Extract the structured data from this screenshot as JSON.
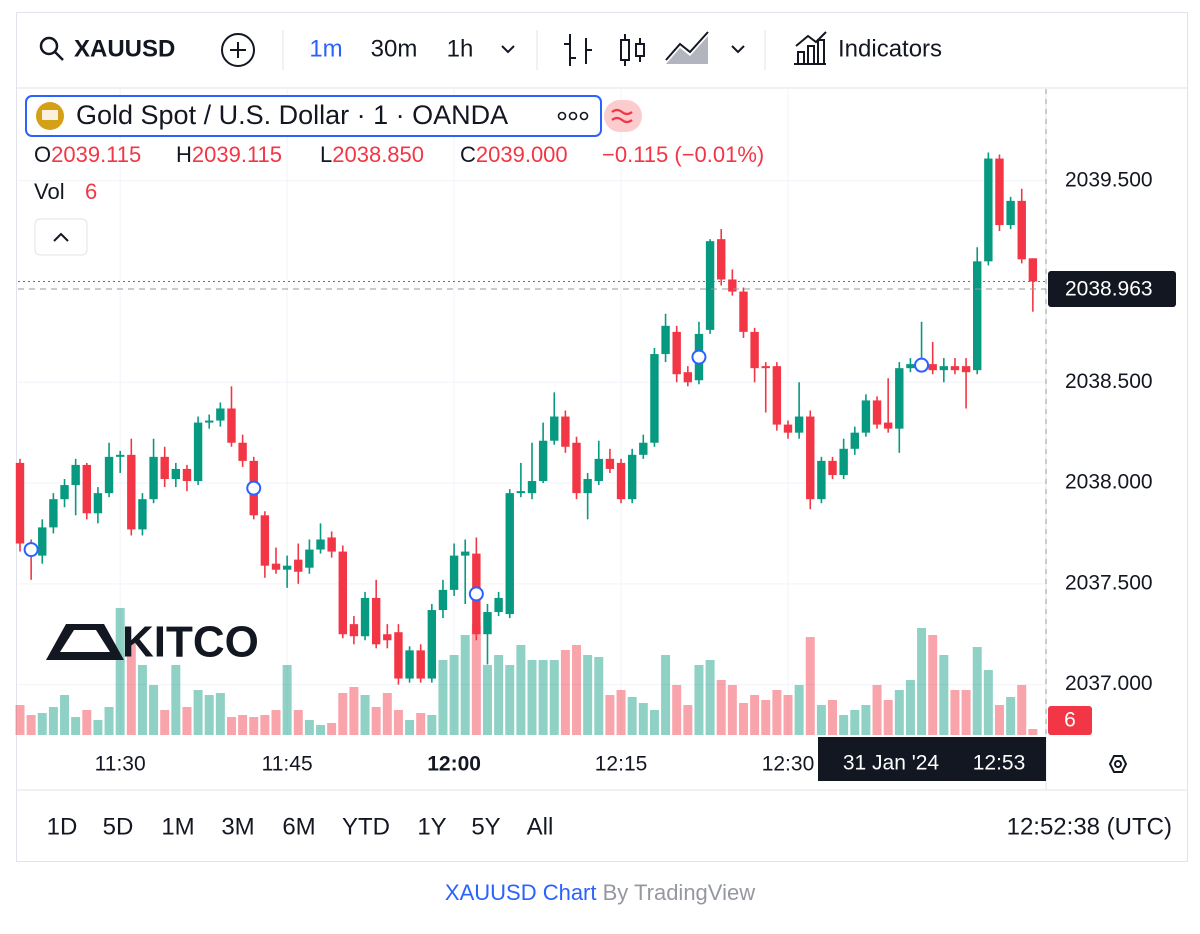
{
  "toolbar": {
    "symbol": "XAUUSD",
    "intervals": [
      "1m",
      "30m",
      "1h"
    ],
    "indicators": "Indicators"
  },
  "legend": {
    "title": "Gold Spot / U.S. Dollar · 1 · OANDA",
    "ohlc": [
      {
        "key": "O",
        "value": "2039.115"
      },
      {
        "key": "H",
        "value": "2039.115"
      },
      {
        "key": "L",
        "value": "2038.850"
      },
      {
        "key": "C",
        "value": "2039.000"
      }
    ],
    "change": "−0.115 (−0.01%)",
    "vol_label": "Vol"
  },
  "logo": "KITCO",
  "chart_data": {
    "type": "candlestick",
    "up_color": "#089981",
    "down_color": "#f23645",
    "grid": true,
    "xlim": [
      -0.18,
      92.18
    ],
    "xticks": [
      {
        "value": 9,
        "label": "11:30"
      },
      {
        "value": 24,
        "label": "11:45"
      },
      {
        "value": 39,
        "label": "12:00"
      },
      {
        "value": 54,
        "label": "12:15"
      },
      {
        "value": 69,
        "label": "12:30"
      }
    ],
    "ylim": [
      2036.75,
      2039.955
    ],
    "yticks": [
      {
        "value": 2037,
        "label": "2037.000"
      },
      {
        "value": 2037.5,
        "label": "2037.500"
      },
      {
        "value": 2038,
        "label": "2038.000"
      },
      {
        "value": 2038.5,
        "label": "2038.500"
      },
      {
        "value": 2039.5,
        "label": "2039.500"
      }
    ],
    "current_price": 2038.963,
    "open": [
      2038.1,
      2037.7,
      2037.64,
      2037.78,
      2037.92,
      2037.99,
      2038.09,
      2037.85,
      2037.95,
      2038.13,
      2038.14,
      2037.77,
      2037.92,
      2038.13,
      2038.02,
      2038.07,
      2038.01,
      2038.3,
      2038.31,
      2038.37,
      2038.2,
      2038.11,
      2037.84,
      2037.6,
      2037.57,
      2037.62,
      2037.58,
      2037.67,
      2037.73,
      2037.66,
      2037.3,
      2037.24,
      2037.43,
      2037.25,
      2037.26,
      2037.03,
      2037.17,
      2037.03,
      2037.37,
      2037.47,
      2037.64,
      2037.65,
      2037.25,
      2037.36,
      2037.35,
      2037.95,
      2037.95,
      2038.01,
      2038.21,
      2038.33,
      2038.2,
      2037.95,
      2038.01,
      2038.12,
      2038.1,
      2037.92,
      2038.14,
      2038.2,
      2038.64,
      2038.75,
      2038.55,
      2038.51,
      2038.76,
      2039.21,
      2039.01,
      2038.95,
      2038.75,
      2038.58,
      2038.58,
      2038.29,
      2038.25,
      2038.33,
      2037.92,
      2038.11,
      2038.04,
      2038.17,
      2038.25,
      2038.41,
      2038.3,
      2038.27,
      2038.57,
      2038.57,
      2038.59,
      2038.56,
      2038.58,
      2038.58,
      2038.56,
      2039.1,
      2039.61,
      2039.28,
      2039.4,
      2039.115
    ],
    "high": [
      2038.12,
      2037.72,
      2037.82,
      2037.95,
      2038.02,
      2038.12,
      2038.1,
      2037.98,
      2038.2,
      2038.16,
      2038.22,
      2037.95,
      2038.22,
      2038.18,
      2038.1,
      2038.09,
      2038.33,
      2038.34,
      2038.4,
      2038.48,
      2038.24,
      2038.13,
      2037.86,
      2037.68,
      2037.64,
      2037.7,
      2037.72,
      2037.8,
      2037.76,
      2037.69,
      2037.34,
      2037.46,
      2037.52,
      2037.3,
      2037.3,
      2037.19,
      2037.2,
      2037.4,
      2037.52,
      2037.7,
      2037.72,
      2037.73,
      2037.4,
      2037.46,
      2037.97,
      2038.1,
      2038.2,
      2038.3,
      2038.45,
      2038.36,
      2038.23,
      2038.05,
      2038.21,
      2038.17,
      2038.12,
      2038.17,
      2038.24,
      2038.67,
      2038.84,
      2038.78,
      2038.58,
      2038.8,
      2039.21,
      2039.26,
      2039.06,
      2038.97,
      2038.77,
      2038.6,
      2038.6,
      2038.31,
      2038.5,
      2038.36,
      2038.13,
      2038.13,
      2038.22,
      2038.28,
      2038.44,
      2038.43,
      2038.52,
      2038.6,
      2038.62,
      2038.8,
      2038.7,
      2038.62,
      2038.62,
      2038.62,
      2039.17,
      2039.64,
      2039.63,
      2039.42,
      2039.46,
      2039.115
    ],
    "low": [
      2037.66,
      2037.52,
      2037.6,
      2037.75,
      2037.88,
      2037.84,
      2037.82,
      2037.8,
      2037.93,
      2038.05,
      2037.74,
      2037.74,
      2037.9,
      2037.98,
      2037.98,
      2037.96,
      2037.99,
      2038.27,
      2038.28,
      2038.18,
      2038.08,
      2037.82,
      2037.53,
      2037.55,
      2037.48,
      2037.5,
      2037.55,
      2037.65,
      2037.63,
      2037.23,
      2037.2,
      2037.22,
      2037.18,
      2037.18,
      2037.0,
      2037.01,
      2037.01,
      2037.01,
      2037.33,
      2037.44,
      2037.4,
      2037.22,
      2037.1,
      2037.34,
      2037.33,
      2037.93,
      2037.92,
      2038.0,
      2038.19,
      2038.15,
      2037.92,
      2037.82,
      2037.99,
      2038.05,
      2037.9,
      2037.9,
      2038.12,
      2038.18,
      2038.6,
      2038.5,
      2038.48,
      2038.49,
      2038.74,
      2038.98,
      2038.93,
      2038.72,
      2038.5,
      2038.35,
      2038.26,
      2038.22,
      2038.22,
      2037.87,
      2037.9,
      2038.02,
      2038.02,
      2038.14,
      2038.23,
      2038.27,
      2038.25,
      2038.15,
      2038.55,
      2038.55,
      2038.54,
      2038.5,
      2038.54,
      2038.37,
      2038.54,
      2039.08,
      2039.25,
      2039.26,
      2039.09,
      2038.85
    ],
    "close": [
      2037.7,
      2037.64,
      2037.78,
      2037.92,
      2037.99,
      2038.09,
      2037.85,
      2037.95,
      2038.13,
      2038.14,
      2037.77,
      2037.92,
      2038.13,
      2038.02,
      2038.07,
      2038.01,
      2038.3,
      2038.31,
      2038.37,
      2038.2,
      2038.11,
      2037.84,
      2037.59,
      2037.57,
      2037.59,
      2037.56,
      2037.67,
      2037.72,
      2037.66,
      2037.25,
      2037.24,
      2037.43,
      2037.2,
      2037.22,
      2037.03,
      2037.17,
      2037.03,
      2037.37,
      2037.47,
      2037.64,
      2037.66,
      2037.25,
      2037.36,
      2037.43,
      2037.95,
      2037.96,
      2038.01,
      2038.21,
      2038.33,
      2038.18,
      2037.95,
      2038.02,
      2038.12,
      2038.07,
      2037.92,
      2038.14,
      2038.2,
      2038.64,
      2038.78,
      2038.54,
      2038.5,
      2038.74,
      2039.2,
      2039.01,
      2038.95,
      2038.75,
      2038.57,
      2038.57,
      2038.29,
      2038.25,
      2038.33,
      2037.92,
      2038.11,
      2038.04,
      2038.17,
      2038.25,
      2038.41,
      2038.29,
      2038.27,
      2038.57,
      2038.59,
      2038.6,
      2038.56,
      2038.58,
      2038.56,
      2038.55,
      2039.1,
      2039.61,
      2039.28,
      2039.4,
      2039.11,
      2039.0
    ],
    "volume": [
      30,
      20,
      22,
      28,
      40,
      18,
      25,
      15,
      28,
      127,
      95,
      70,
      50,
      25,
      70,
      28,
      45,
      40,
      42,
      18,
      20,
      18,
      20,
      25,
      70,
      25,
      15,
      10,
      12,
      42,
      48,
      40,
      28,
      42,
      25,
      15,
      22,
      20,
      75,
      80,
      100,
      110,
      70,
      80,
      70,
      90,
      75,
      75,
      75,
      85,
      90,
      80,
      78,
      40,
      45,
      38,
      32,
      25,
      80,
      50,
      30,
      70,
      75,
      55,
      50,
      32,
      40,
      35,
      45,
      40,
      50,
      98,
      30,
      35,
      20,
      25,
      30,
      50,
      35,
      45,
      55,
      107,
      100,
      80,
      45,
      45,
      88,
      65,
      30,
      38,
      50,
      6
    ]
  },
  "crosshair": {
    "date": "31 Jan '24",
    "time": "12:53"
  },
  "ranges": [
    "1D",
    "5D",
    "1M",
    "3M",
    "6M",
    "YTD",
    "1Y",
    "5Y",
    "All"
  ],
  "clock": "12:52:38 (UTC)",
  "footer": {
    "link": "XAUUSD Chart",
    "by": "By TradingView"
  }
}
